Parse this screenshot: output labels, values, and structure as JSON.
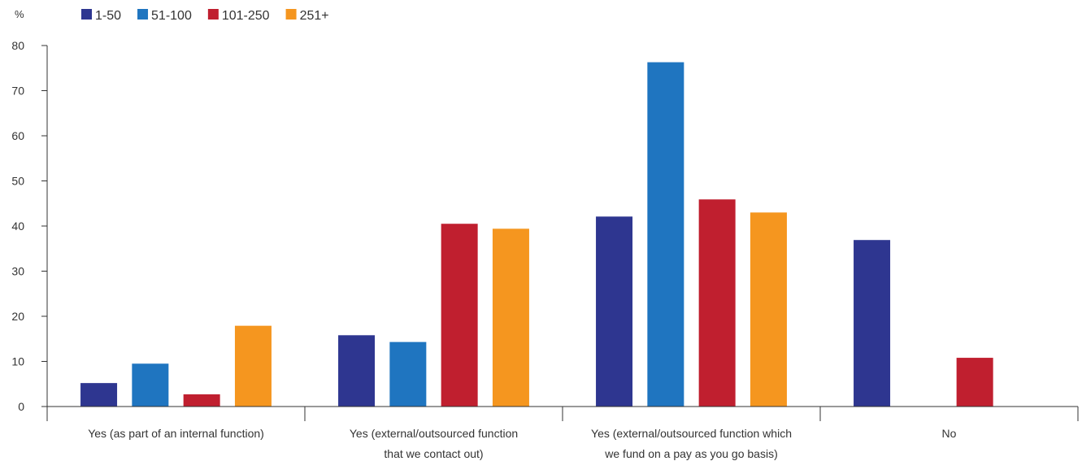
{
  "chart_data": {
    "type": "bar",
    "y_unit": "%",
    "categories": [
      [
        "Yes (as part of an internal function)"
      ],
      [
        "Yes (external/outsourced function",
        "that we contact out)"
      ],
      [
        "Yes (external/outsourced function which",
        "we fund on a pay as you go basis)"
      ],
      [
        "No"
      ]
    ],
    "series": [
      {
        "name": "1-50",
        "color": "#2e3690",
        "values": [
          5.2,
          15.8,
          42.1,
          36.9
        ]
      },
      {
        "name": "51-100",
        "color": "#1f75c0",
        "values": [
          9.5,
          14.3,
          76.3,
          0
        ]
      },
      {
        "name": "101-250",
        "color": "#c01f2f",
        "values": [
          2.7,
          40.5,
          45.9,
          10.8
        ]
      },
      {
        "name": "251+",
        "color": "#f5961f",
        "values": [
          17.9,
          39.4,
          43.0,
          0
        ]
      }
    ],
    "ylim": [
      0,
      80
    ],
    "yticks": [
      0,
      10,
      20,
      30,
      40,
      50,
      60,
      70,
      80
    ],
    "legend_position": "top-left",
    "grid": false
  }
}
